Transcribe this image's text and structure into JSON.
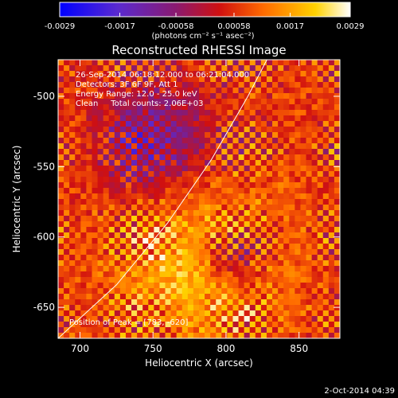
{
  "colors": {
    "background": "#000000",
    "foreground": "#ffffff",
    "limb": "#ffffff"
  },
  "colorbar": {
    "ticks": [
      "-0.0029",
      "-0.0017",
      "-0.00058",
      "0.00058",
      "0.0017",
      "0.0029"
    ],
    "tick_values": [
      -0.0029,
      -0.0017,
      -0.00058,
      0.00058,
      0.0017,
      0.0029
    ],
    "range": [
      -0.0029,
      0.0029
    ],
    "units": "(photons cm⁻² s⁻¹ asec⁻²)",
    "colormap": "blue-purple-red-orange-yellow-white"
  },
  "chart_data": {
    "type": "heatmap",
    "title": "Reconstructed RHESSI Image",
    "xlabel": "Heliocentric X (arcsec)",
    "ylabel": "Heliocentric Y (arcsec)",
    "xlim": [
      685,
      878
    ],
    "ylim": [
      -672,
      -474
    ],
    "x_ticks": [
      700,
      750,
      800,
      850
    ],
    "y_ticks": [
      -500,
      -550,
      -600,
      -650
    ],
    "annotations": [
      "26-Sep-2014 06:18:12.000 to 06:21:04.000",
      "Detectors: 3F 6F 9F, Att 1",
      "Energy Range: 12.0 - 25.0 keV",
      "Clean     Total counts: 2.06E+03"
    ],
    "peak_label": "Position of Peak = [783, -620]",
    "peak": {
      "x": 783,
      "y": -620
    },
    "limb_curve": {
      "x": [
        685,
        725,
        760,
        790,
        815,
        828
      ],
      "y": [
        -672,
        -634,
        -590,
        -545,
        -500,
        -474
      ]
    },
    "value_range": [
      -0.0029,
      0.0029
    ]
  },
  "footer": {
    "timestamp": "2-Oct-2014 04:39"
  }
}
